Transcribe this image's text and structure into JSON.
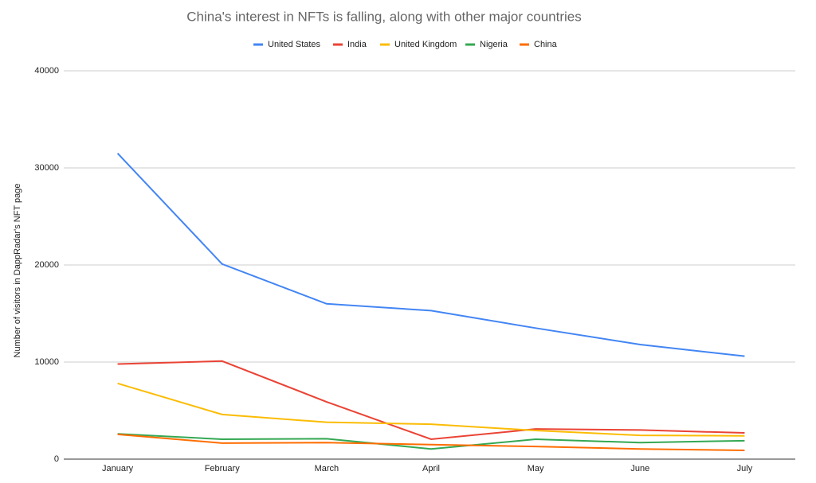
{
  "chart_data": {
    "type": "line",
    "title": "China's interest in NFTs is falling, along with other major countries",
    "y_label": "Number of visitors in DappRadar's NFT page",
    "categories": [
      "January",
      "February",
      "March",
      "April",
      "May",
      "June",
      "July"
    ],
    "series": [
      {
        "name": "United States",
        "color": "#4285f4",
        "values": [
          31500,
          20100,
          16000,
          15300,
          13500,
          11800,
          10600
        ]
      },
      {
        "name": "India",
        "color": "#ea4335",
        "values": [
          9800,
          10100,
          5900,
          2050,
          3100,
          3000,
          2700
        ]
      },
      {
        "name": "United Kingdom",
        "color": "#fbbc04",
        "values": [
          7800,
          4600,
          3800,
          3600,
          2950,
          2450,
          2400
        ]
      },
      {
        "name": "Nigeria",
        "color": "#34a853",
        "values": [
          2600,
          2050,
          2100,
          1050,
          2050,
          1700,
          1900
        ]
      },
      {
        "name": "China",
        "color": "#ff6d01",
        "values": [
          2550,
          1650,
          1700,
          1500,
          1300,
          1050,
          900
        ]
      }
    ],
    "ylim": [
      0,
      40000
    ],
    "yticks": [
      0,
      10000,
      20000,
      30000,
      40000
    ],
    "grid": true,
    "legend": "top"
  }
}
